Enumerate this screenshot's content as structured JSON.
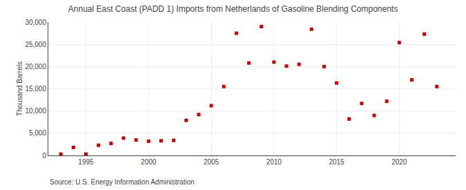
{
  "chart_data": {
    "type": "scatter",
    "title": "Annual East Coast (PADD 1) Imports from Netherlands of Gasoline Blending Components",
    "ylabel": "Thousand Barrels",
    "annotations": [
      "Source: U.S. Energy Information Administration"
    ],
    "x": [
      1993,
      1994,
      1995,
      1996,
      1997,
      1998,
      1999,
      2000,
      2001,
      2002,
      2003,
      2004,
      2005,
      2006,
      2007,
      2008,
      2009,
      2010,
      2011,
      2012,
      2013,
      2014,
      2015,
      2016,
      2017,
      2018,
      2019,
      2020,
      2021,
      2022,
      2023
    ],
    "values": [
      300,
      1800,
      300,
      2300,
      2700,
      3900,
      3500,
      3200,
      3300,
      3400,
      7900,
      9200,
      11200,
      15500,
      27500,
      20800,
      29000,
      21000,
      20100,
      20500,
      28400,
      20000,
      16300,
      8200,
      11700,
      9000,
      12200,
      25400,
      17000,
      27300,
      15500
    ],
    "color": "#cc0000",
    "marker": "square",
    "xlim": [
      1992,
      2024.5
    ],
    "ylim": [
      0,
      30000
    ],
    "xticks": [
      1995,
      2000,
      2005,
      2010,
      2015,
      2020
    ],
    "yticks": [
      0,
      {
        "value": 5000,
        "label": "5,000"
      },
      {
        "value": 10000,
        "label": "10,000"
      },
      {
        "value": 15000,
        "label": "15,000"
      },
      {
        "value": 20000,
        "label": "20,000"
      },
      {
        "value": 25000,
        "label": "25,000"
      },
      {
        "value": 30000,
        "label": "30,000"
      }
    ],
    "grid": true
  }
}
